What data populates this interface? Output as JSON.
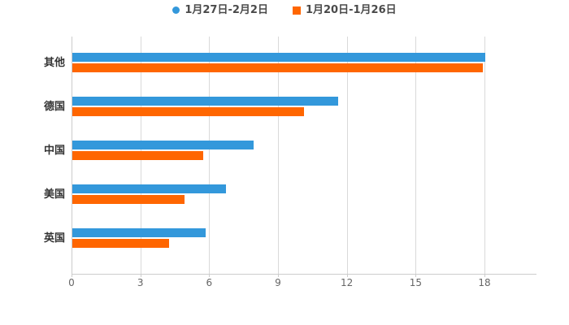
{
  "colors": {
    "series1": "#3398db",
    "series2": "#ff6600",
    "axis_line": "#cccccc",
    "grid_line": "#d9d9d9",
    "tick_label": "#666666",
    "category_label": "#333333",
    "legend_text": "#4a4a4a",
    "background": "#ffffff"
  },
  "legend": {
    "items": [
      {
        "label": "1月27日-2月2日",
        "marker": "circle",
        "color": "#3398db"
      },
      {
        "label": "1月20日-1月26日",
        "marker": "square",
        "color": "#ff6600"
      }
    ]
  },
  "chart_data": {
    "type": "bar",
    "orientation": "horizontal",
    "title": "",
    "xlabel": "",
    "ylabel": "",
    "categories": [
      "其他",
      "德国",
      "中国",
      "美国",
      "英国"
    ],
    "series": [
      {
        "name": "1月27日-2月2日",
        "color": "#3398db",
        "values": [
          18.0,
          11.6,
          7.9,
          6.7,
          5.8
        ]
      },
      {
        "name": "1月20日-1月26日",
        "color": "#ff6600",
        "values": [
          17.9,
          10.1,
          5.7,
          4.9,
          4.2
        ]
      }
    ],
    "x_ticks": [
      0,
      3,
      6,
      9,
      12,
      15,
      18
    ],
    "xlim": [
      0,
      18
    ],
    "grid": true,
    "legend_position": "top"
  }
}
